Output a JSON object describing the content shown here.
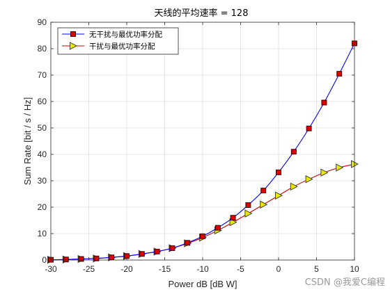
{
  "chart_data": {
    "type": "line",
    "title": "天线的平均速率 = 128",
    "xlabel": "Power dB [dB W]",
    "ylabel": "Sum Rate [bit / s / Hz]",
    "xlim": [
      -30,
      10
    ],
    "ylim": [
      0,
      90
    ],
    "xticks": [
      -30,
      -25,
      -20,
      -15,
      -10,
      -5,
      0,
      5,
      10
    ],
    "yticks": [
      0,
      10,
      20,
      30,
      40,
      50,
      60,
      70,
      80,
      90
    ],
    "grid": true,
    "legend_position": "top-left",
    "series": [
      {
        "name": "无干扰与最优功率分配",
        "color": "#0000ff",
        "marker": "square",
        "marker_fill": "#dd0000",
        "x": [
          -30,
          -28,
          -26,
          -24,
          -22,
          -20,
          -18,
          -16,
          -14,
          -12,
          -10,
          -8,
          -6,
          -4,
          -2,
          0,
          2,
          4,
          6,
          8,
          10
        ],
        "y": [
          0.1,
          0.2,
          0.4,
          0.6,
          1.0,
          1.5,
          2.3,
          3.2,
          4.5,
          6.5,
          9.0,
          12.2,
          16.0,
          20.8,
          26.3,
          33.2,
          41.0,
          49.8,
          59.6,
          70.5,
          82.0
        ]
      },
      {
        "name": "干扰与最优功率分配",
        "color": "#cc0000",
        "marker": "triangle-right",
        "marker_fill": "#e8e800",
        "x": [
          -30,
          -28,
          -26,
          -24,
          -22,
          -20,
          -18,
          -16,
          -14,
          -12,
          -10,
          -8,
          -6,
          -4,
          -2,
          0,
          2,
          4,
          6,
          8,
          10
        ],
        "y": [
          0.1,
          0.2,
          0.4,
          0.6,
          1.0,
          1.5,
          2.3,
          3.2,
          4.5,
          6.3,
          8.5,
          11.2,
          14.3,
          17.6,
          21.0,
          24.4,
          27.8,
          30.6,
          33.1,
          35.0,
          36.3
        ]
      }
    ]
  },
  "watermark": "CSDN @我爱C编程"
}
